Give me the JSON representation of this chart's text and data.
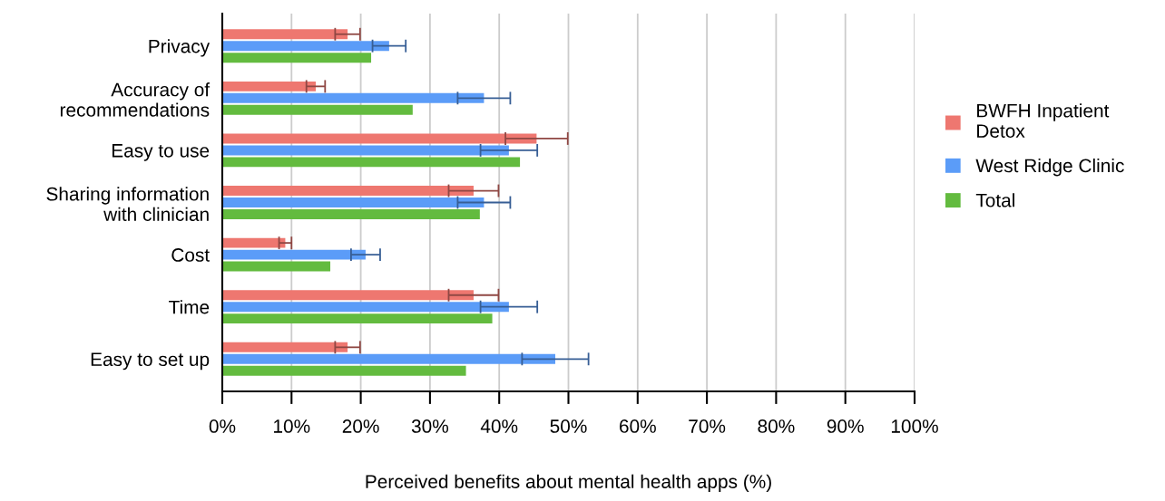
{
  "chart_data": {
    "type": "bar",
    "orientation": "horizontal",
    "xlabel": "Perceived benefits about mental health apps (%)",
    "categories": [
      "Privacy",
      "Accuracy of\nrecommendations",
      "Easy to use",
      "Sharing information\nwith clinician",
      "Cost",
      "Time",
      "Easy to set up"
    ],
    "series": [
      {
        "name": "BWFH Inpatient\nDetox",
        "color": "#ee7770",
        "values": [
          18.1,
          13.5,
          45.4,
          36.3,
          9.1,
          36.3,
          18.1
        ],
        "errors": [
          1.8,
          1.35,
          4.5,
          3.6,
          0.9,
          3.6,
          1.8
        ]
      },
      {
        "name": "West Ridge Clinic",
        "color": "#5b9cf8",
        "values": [
          24.1,
          37.8,
          41.4,
          37.8,
          20.7,
          41.4,
          48.1
        ],
        "errors": [
          2.4,
          3.8,
          4.1,
          3.8,
          2.1,
          4.1,
          4.8
        ]
      },
      {
        "name": "Total",
        "color": "#63bb3f",
        "values": [
          21.5,
          27.5,
          43.0,
          37.2,
          15.6,
          39.0,
          35.2
        ]
      }
    ],
    "xlim": [
      0,
      100
    ],
    "xticks": [
      {
        "value": 0,
        "label": "0%"
      },
      {
        "value": 10,
        "label": "10%"
      },
      {
        "value": 20,
        "label": "20%"
      },
      {
        "value": 30,
        "label": "30%"
      },
      {
        "value": 40,
        "label": "40%"
      },
      {
        "value": 50,
        "label": "50%"
      },
      {
        "value": 60,
        "label": "60%"
      },
      {
        "value": 70,
        "label": "70%"
      },
      {
        "value": 80,
        "label": "80%"
      },
      {
        "value": 90,
        "label": "90%"
      },
      {
        "value": 100,
        "label": "100%"
      }
    ],
    "grid": "x",
    "legend": "right"
  }
}
